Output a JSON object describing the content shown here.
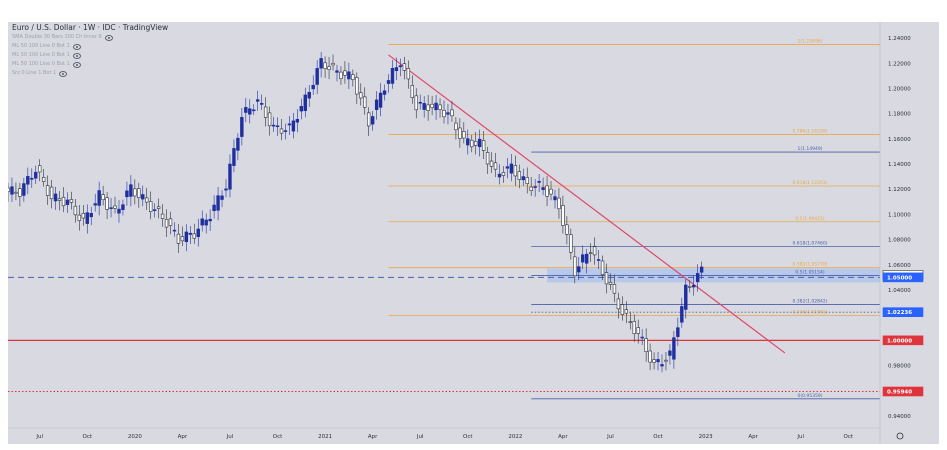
{
  "header": {
    "title": "Euro / U.S. Dollar · 1W · IDC · TradingView",
    "indicators": [
      "SMA Double 30 Bars 100 Ch Inner 9",
      "ML 50 100 Line 0 Bot 1",
      "ML 50 100 Line 0 Bot 1",
      "ML 50 100 Line 0 Bot 1",
      "Srz 0 Line 1 Bot 1"
    ]
  },
  "colors": {
    "background": "#d9dae1",
    "up_candle": "#1f2fa0",
    "down_candle": "#2a2e39",
    "trendline": "#e0466a",
    "fib_orange": "#e6a84a",
    "fib_blue": "#4a5fa8",
    "support_red": "#e0343c",
    "zone": "#a9c1ee"
  },
  "chart_data": {
    "type": "candlestick",
    "symbol": "EUR/USD",
    "timeframe": "1W",
    "ylim": [
      0.932,
      1.248
    ],
    "xlim": [
      "2019-05",
      "2023-12"
    ],
    "x_ticks": [
      {
        "label": "Jul",
        "x": "2019-07"
      },
      {
        "label": "Oct",
        "x": "2019-10"
      },
      {
        "label": "2020",
        "x": "2020-01"
      },
      {
        "label": "Apr",
        "x": "2020-04"
      },
      {
        "label": "Jul",
        "x": "2020-07"
      },
      {
        "label": "Oct",
        "x": "2020-10"
      },
      {
        "label": "2021",
        "x": "2021-01"
      },
      {
        "label": "Apr",
        "x": "2021-04"
      },
      {
        "label": "Jul",
        "x": "2021-07"
      },
      {
        "label": "Oct",
        "x": "2021-10"
      },
      {
        "label": "2022",
        "x": "2022-01"
      },
      {
        "label": "Apr",
        "x": "2022-04"
      },
      {
        "label": "Jul",
        "x": "2022-07"
      },
      {
        "label": "Oct",
        "x": "2022-10"
      },
      {
        "label": "2023",
        "x": "2023-01"
      },
      {
        "label": "Apr",
        "x": "2023-04"
      },
      {
        "label": "Jul",
        "x": "2023-07"
      },
      {
        "label": "Oct",
        "x": "2023-10"
      }
    ],
    "y_ticks": [
      1.24,
      1.22,
      1.2,
      1.18,
      1.16,
      1.14,
      1.12,
      1.1,
      1.08,
      1.06,
      1.04,
      1.02,
      1.0,
      0.98,
      0.96,
      0.94
    ],
    "y_tick_labels": [
      "1.24000",
      "1.22000",
      "1.20000",
      "1.18000",
      "1.16000",
      "1.14000",
      "1.12000",
      "1.10000",
      "1.08000",
      "1.06000",
      "1.04000",
      "1.02000",
      "1.00000",
      "0.98000",
      "0.96000",
      "0.94000"
    ],
    "close_series": [
      [
        "2019-05",
        1.118
      ],
      [
        "2019-06",
        1.136
      ],
      [
        "2019-07",
        1.113
      ],
      [
        "2019-08",
        1.11
      ],
      [
        "2019-09",
        1.094
      ],
      [
        "2019-10",
        1.115
      ],
      [
        "2019-11",
        1.101
      ],
      [
        "2019-12",
        1.121
      ],
      [
        "2020-01",
        1.109
      ],
      [
        "2020-02",
        1.098
      ],
      [
        "2020-03",
        1.08
      ],
      [
        "2020-04",
        1.085
      ],
      [
        "2020-05",
        1.1
      ],
      [
        "2020-06",
        1.123
      ],
      [
        "2020-07",
        1.178
      ],
      [
        "2020-08",
        1.19
      ],
      [
        "2020-09",
        1.168
      ],
      [
        "2020-10",
        1.168
      ],
      [
        "2020-11",
        1.191
      ],
      [
        "2020-12",
        1.221
      ],
      [
        "2021-01",
        1.213
      ],
      [
        "2021-02",
        1.208
      ],
      [
        "2021-03",
        1.173
      ],
      [
        "2021-04",
        1.202
      ],
      [
        "2021-05",
        1.222
      ],
      [
        "2021-06",
        1.186
      ],
      [
        "2021-07",
        1.186
      ],
      [
        "2021-08",
        1.18
      ],
      [
        "2021-09",
        1.158
      ],
      [
        "2021-10",
        1.156
      ],
      [
        "2021-11",
        1.132
      ],
      [
        "2021-12",
        1.137
      ],
      [
        "2022-01",
        1.123
      ],
      [
        "2022-02",
        1.122
      ],
      [
        "2022-03",
        1.107
      ],
      [
        "2022-04",
        1.055
      ],
      [
        "2022-05",
        1.073
      ],
      [
        "2022-06",
        1.048
      ],
      [
        "2022-07",
        1.022
      ],
      [
        "2022-08",
        1.005
      ],
      [
        "2022-09",
        0.98
      ],
      [
        "2022-10",
        0.988
      ],
      [
        "2022-11",
        1.04
      ],
      [
        "2022-12",
        1.055
      ]
    ],
    "marked_high": {
      "x": "2021-01",
      "value": 1.2349
    },
    "marked_low": {
      "x": "2022-09",
      "value": 0.9536
    },
    "trendline": {
      "from": [
        "2021-05",
        1.2266
      ],
      "to": [
        "2023-06",
        0.99
      ]
    },
    "fib_levels": [
      {
        "label": "1(1.23496)",
        "value": 1.23496,
        "color": "orange",
        "x_from": "2021-05"
      },
      {
        "label": "0.786(1.16339)",
        "value": 1.16339,
        "color": "orange",
        "x_from": "2021-05"
      },
      {
        "label": "0.618(1.12253)",
        "value": 1.12253,
        "color": "orange",
        "x_from": "2021-05"
      },
      {
        "label": "0.5(1.09415)",
        "value": 1.09415,
        "color": "orange",
        "x_from": "2021-05"
      },
      {
        "label": "0.382(1.05770)",
        "value": 1.0577,
        "color": "orange",
        "x_from": "2021-05"
      },
      {
        "label": "0.236(1.01981)",
        "value": 1.01981,
        "color": "orange",
        "x_from": "2021-05"
      },
      {
        "label": "1(1.14949)",
        "value": 1.14949,
        "color": "blue",
        "x_from": "2022-02"
      },
      {
        "label": "0.618(1.07460)",
        "value": 1.0746,
        "color": "blue",
        "x_from": "2022-02"
      },
      {
        "label": "0.5(1.05154)",
        "value": 1.05154,
        "color": "blue",
        "x_from": "2022-02"
      },
      {
        "label": "0.382(1.02842)",
        "value": 1.02842,
        "color": "blue",
        "x_from": "2022-02"
      },
      {
        "label": "0(0.95359)",
        "value": 0.95359,
        "color": "blue",
        "x_from": "2022-02"
      }
    ],
    "resistance_zone": [
      1.046,
      1.057
    ],
    "horizontal_lines": [
      {
        "value": 1.05,
        "style": "dashed",
        "color": "blue"
      },
      {
        "value": 1.0,
        "style": "solid",
        "color": "red"
      },
      {
        "value": 0.9594,
        "style": "dotted",
        "color": "red"
      },
      {
        "value": 1.02236,
        "style": "dotted",
        "color": "blue"
      }
    ],
    "price_badges": [
      {
        "label": "1.05199",
        "value": 1.05199,
        "style": "outline"
      },
      {
        "label": "1.05000",
        "value": 1.05,
        "style": "blue"
      },
      {
        "label": "1.02236",
        "value": 1.02236,
        "style": "blue"
      },
      {
        "label": "1.00000",
        "value": 1.0,
        "style": "red"
      },
      {
        "label": "0.95940",
        "value": 0.9594,
        "style": "red"
      }
    ]
  }
}
